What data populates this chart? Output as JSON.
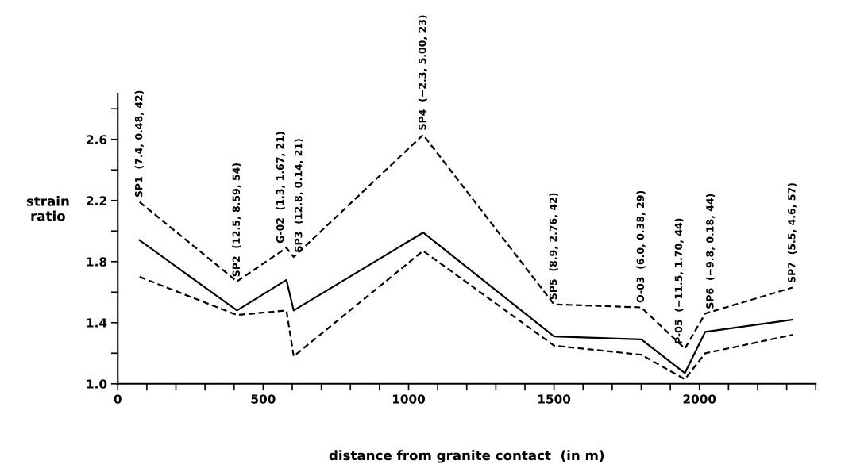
{
  "chart_data": {
    "type": "line",
    "xlabel": "distance from granite contact  (in m)",
    "ylabel": "strain\nratio",
    "x": [
      75,
      410,
      580,
      605,
      1050,
      1500,
      1800,
      1950,
      2020,
      2320
    ],
    "series": [
      {
        "color": "#000000",
        "line_style": "dashed",
        "values": [
          2.19,
          1.67,
          1.89,
          1.83,
          2.63,
          1.52,
          1.5,
          1.23,
          1.46,
          1.63
        ]
      },
      {
        "color": "#000000",
        "line_style": "solid",
        "values": [
          1.94,
          1.48,
          1.68,
          1.48,
          1.99,
          1.31,
          1.29,
          1.07,
          1.34,
          1.42
        ]
      },
      {
        "color": "#000000",
        "line_style": "dashed",
        "values": [
          1.7,
          1.45,
          1.48,
          1.18,
          1.87,
          1.25,
          1.19,
          1.03,
          1.2,
          1.32
        ]
      }
    ],
    "xlim": [
      0,
      2400
    ],
    "xticks": [
      0,
      {
        "value": 100,
        "label": null
      },
      {
        "value": 200,
        "label": null
      },
      {
        "value": 300,
        "label": null
      },
      {
        "value": 400,
        "label": null
      },
      500,
      {
        "value": 600,
        "label": null
      },
      {
        "value": 700,
        "label": null
      },
      {
        "value": 800,
        "label": null
      },
      {
        "value": 900,
        "label": null
      },
      1000,
      {
        "value": 1100,
        "label": null
      },
      {
        "value": 1200,
        "label": null
      },
      {
        "value": 1300,
        "label": null
      },
      {
        "value": 1400,
        "label": null
      },
      1500,
      {
        "value": 1600,
        "label": null
      },
      {
        "value": 1700,
        "label": null
      },
      {
        "value": 1800,
        "label": null
      },
      {
        "value": 1900,
        "label": null
      },
      2000,
      {
        "value": 2100,
        "label": null
      },
      {
        "value": 2200,
        "label": null
      },
      {
        "value": 2300,
        "label": null
      },
      {
        "value": 2400,
        "label": null
      }
    ],
    "ylim": [
      1.0,
      2.9
    ],
    "yticks": [
      {
        "value": 1.0,
        "label": "1.0"
      },
      {
        "value": 1.2,
        "label": null
      },
      1.4,
      {
        "value": 1.6,
        "label": null
      },
      1.8,
      {
        "value": 2.0,
        "label": null
      },
      2.2,
      {
        "value": 2.4,
        "label": null
      },
      2.6,
      {
        "value": 2.8,
        "label": null
      }
    ],
    "grid": false,
    "legend": false,
    "marker": "none",
    "annotations": [
      {
        "text": "SP1  (7.4, 0.48, 42)",
        "x": 75,
        "y": 2.19
      },
      {
        "text": "SP2  (12.5, 8.59, 54)",
        "x": 410,
        "y": 1.67
      },
      {
        "text": "G-02  (1.3, 1.67, 21)",
        "x": 580,
        "y": 1.89
      },
      {
        "text": "SP3  (12.8, 0.14, 21)",
        "x": 605,
        "y": 1.83
      },
      {
        "text": "SP4  (−2.3, 5.00, 23)",
        "x": 1050,
        "y": 2.63
      },
      {
        "text": "SP5  (8.9, 2.76, 42)",
        "x": 1500,
        "y": 1.52
      },
      {
        "text": "O-03  (6.0, 0.38, 29)",
        "x": 1800,
        "y": 1.5
      },
      {
        "text": "P-05  (−11.5, 1.70, 44)",
        "x": 1950,
        "y": 1.23
      },
      {
        "text": "SP6  (−9.8, 0.18, 44)",
        "x": 2020,
        "y": 1.46
      },
      {
        "text": "SP7  (5.5, 4.6, 57)",
        "x": 2320,
        "y": 1.63
      }
    ]
  }
}
